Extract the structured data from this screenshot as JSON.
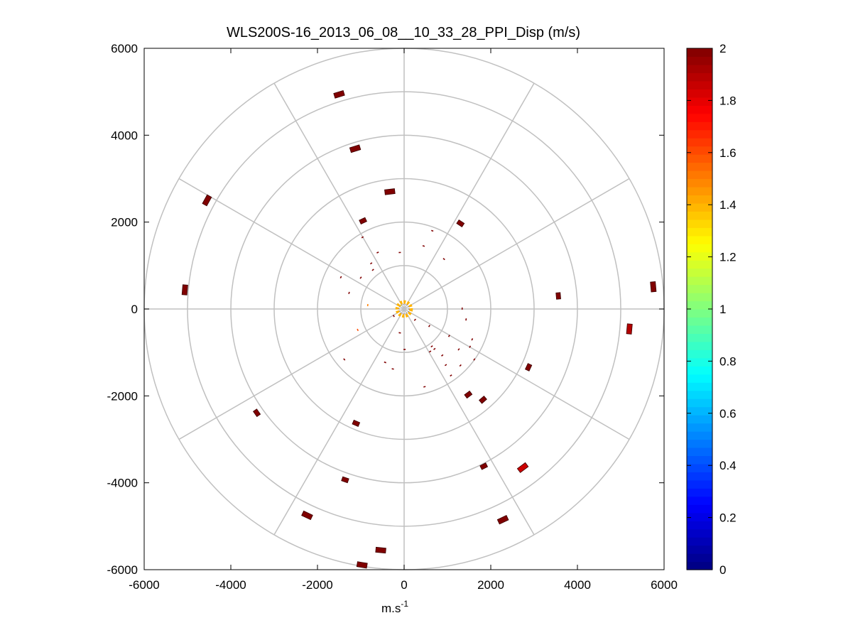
{
  "chart_data": {
    "type": "scatter",
    "subtype": "polar-ppi",
    "title": "WLS200S-16_2013_06_08__10_33_28_PPI_Disp (m/s)",
    "xlabel": {
      "base": "m.s",
      "sup": "-1"
    },
    "ylabel": "",
    "xlim": [
      -6000,
      6000
    ],
    "ylim": [
      -6000,
      6000
    ],
    "xticks": [
      "-6000",
      "-4000",
      "-2000",
      "0",
      "2000",
      "4000",
      "6000"
    ],
    "yticks": [
      "6000",
      "4000",
      "2000",
      "0",
      "-2000",
      "-4000",
      "-6000"
    ],
    "grid": true,
    "polar_rings": [
      1000,
      2000,
      3000,
      4000,
      5000,
      6000
    ],
    "polar_spokes_deg": [
      0,
      30,
      60,
      90,
      120,
      150,
      180,
      210,
      240,
      270,
      300,
      330
    ],
    "colorbar": {
      "colormap": "jet",
      "range": [
        0,
        2
      ],
      "ticks": [
        "2",
        "1.8",
        "1.6",
        "1.4",
        "1.2",
        "1",
        "0.8",
        "0.6",
        "0.4",
        "0.2",
        "0"
      ]
    },
    "points": [
      {
        "x": -1500,
        "y": 4940,
        "v": 2.0,
        "size": "large"
      },
      {
        "x": -1130,
        "y": 3690,
        "v": 2.0,
        "size": "large"
      },
      {
        "x": -330,
        "y": 2700,
        "v": 2.0,
        "size": "large"
      },
      {
        "x": -950,
        "y": 2030,
        "v": 2.0,
        "size": "medium"
      },
      {
        "x": 1300,
        "y": 1970,
        "v": 2.0,
        "size": "medium"
      },
      {
        "x": -4550,
        "y": 2500,
        "v": 2.0,
        "size": "large"
      },
      {
        "x": -5060,
        "y": 440,
        "v": 2.0,
        "size": "large"
      },
      {
        "x": 5750,
        "y": 510,
        "v": 2.0,
        "size": "large"
      },
      {
        "x": 3560,
        "y": 300,
        "v": 2.0,
        "size": "medium"
      },
      {
        "x": 5200,
        "y": -460,
        "v": 1.9,
        "size": "large"
      },
      {
        "x": 2870,
        "y": -1340,
        "v": 2.0,
        "size": "medium"
      },
      {
        "x": 1480,
        "y": -1970,
        "v": 2.0,
        "size": "medium"
      },
      {
        "x": 1820,
        "y": -2090,
        "v": 2.0,
        "size": "medium"
      },
      {
        "x": -3400,
        "y": -2390,
        "v": 2.0,
        "size": "medium"
      },
      {
        "x": -1110,
        "y": -2630,
        "v": 2.0,
        "size": "medium"
      },
      {
        "x": 1840,
        "y": -3620,
        "v": 2.0,
        "size": "medium"
      },
      {
        "x": 2740,
        "y": -3650,
        "v": 1.85,
        "size": "large"
      },
      {
        "x": -1360,
        "y": -3930,
        "v": 2.0,
        "size": "medium"
      },
      {
        "x": -2240,
        "y": -4750,
        "v": 2.0,
        "size": "large"
      },
      {
        "x": 2280,
        "y": -4850,
        "v": 2.0,
        "size": "large"
      },
      {
        "x": -540,
        "y": -5550,
        "v": 2.0,
        "size": "large"
      },
      {
        "x": -970,
        "y": -5890,
        "v": 2.0,
        "size": "large"
      },
      {
        "x": -960,
        "y": 1650,
        "v": 2.0,
        "size": "small"
      },
      {
        "x": -610,
        "y": 1300,
        "v": 2.0,
        "size": "small"
      },
      {
        "x": -100,
        "y": 1300,
        "v": 2.0,
        "size": "small"
      },
      {
        "x": 650,
        "y": 1800,
        "v": 2.0,
        "size": "small"
      },
      {
        "x": 450,
        "y": 1450,
        "v": 2.0,
        "size": "small"
      },
      {
        "x": 920,
        "y": 1150,
        "v": 2.0,
        "size": "small"
      },
      {
        "x": -760,
        "y": 1050,
        "v": 2.0,
        "size": "small"
      },
      {
        "x": -1000,
        "y": 720,
        "v": 2.0,
        "size": "small"
      },
      {
        "x": -720,
        "y": 900,
        "v": 2.0,
        "size": "small"
      },
      {
        "x": -1460,
        "y": 730,
        "v": 2.0,
        "size": "small"
      },
      {
        "x": -1270,
        "y": 370,
        "v": 2.0,
        "size": "small"
      },
      {
        "x": -840,
        "y": 90,
        "v": 1.5,
        "size": "small"
      },
      {
        "x": -80,
        "y": 80,
        "v": 1.3,
        "size": "small"
      },
      {
        "x": 1340,
        "y": 10,
        "v": 2.0,
        "size": "small"
      },
      {
        "x": 1430,
        "y": -240,
        "v": 2.0,
        "size": "small"
      },
      {
        "x": -240,
        "y": -160,
        "v": 2.0,
        "size": "small"
      },
      {
        "x": 250,
        "y": -250,
        "v": 2.0,
        "size": "small"
      },
      {
        "x": -100,
        "y": -550,
        "v": 2.0,
        "size": "small"
      },
      {
        "x": 580,
        "y": -390,
        "v": 2.0,
        "size": "small"
      },
      {
        "x": 1040,
        "y": -620,
        "v": 2.0,
        "size": "small"
      },
      {
        "x": -1070,
        "y": -480,
        "v": 1.6,
        "size": "small"
      },
      {
        "x": 1570,
        "y": -700,
        "v": 2.0,
        "size": "small"
      },
      {
        "x": 1520,
        "y": -870,
        "v": 2.0,
        "size": "small"
      },
      {
        "x": 640,
        "y": -860,
        "v": 2.0,
        "size": "small"
      },
      {
        "x": 700,
        "y": -920,
        "v": 2.0,
        "size": "small"
      },
      {
        "x": 10,
        "y": -930,
        "v": 2.0,
        "size": "small"
      },
      {
        "x": 600,
        "y": -980,
        "v": 2.0,
        "size": "small"
      },
      {
        "x": 1260,
        "y": -930,
        "v": 2.0,
        "size": "small"
      },
      {
        "x": 880,
        "y": -1070,
        "v": 2.0,
        "size": "small"
      },
      {
        "x": -1380,
        "y": -1160,
        "v": 2.0,
        "size": "small"
      },
      {
        "x": -440,
        "y": -1230,
        "v": 2.0,
        "size": "small"
      },
      {
        "x": 960,
        "y": -1290,
        "v": 2.0,
        "size": "small"
      },
      {
        "x": 1300,
        "y": -1300,
        "v": 2.0,
        "size": "small"
      },
      {
        "x": 1080,
        "y": -1530,
        "v": 2.0,
        "size": "small"
      },
      {
        "x": -260,
        "y": -1380,
        "v": 2.0,
        "size": "small"
      },
      {
        "x": 1620,
        "y": -1160,
        "v": 2.0,
        "size": "small"
      },
      {
        "x": 470,
        "y": -1790,
        "v": 2.0,
        "size": "small"
      }
    ],
    "center_ring": {
      "x": 0,
      "y": 0,
      "radius": 160,
      "v": 1.4
    }
  }
}
